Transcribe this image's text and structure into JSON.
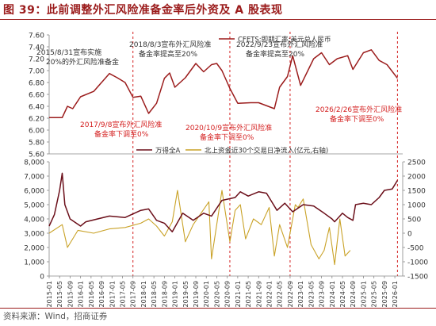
{
  "title": "图 39：此前调整外汇风险准备金率后外资及 A 股表现",
  "source": "资料来源：Wind，招商证券",
  "chart_data": [
    {
      "type": "line",
      "panel": "top",
      "series": [
        {
          "name": "CFETS:即期汇率:美元兑人民币",
          "color": "#9b1c1c",
          "x": [
            "2015-01",
            "2015-06",
            "2015-08",
            "2015-10",
            "2016-01",
            "2016-06",
            "2016-12",
            "2017-03",
            "2017-06",
            "2017-09",
            "2017-12",
            "2018-03",
            "2018-06",
            "2018-09",
            "2018-11",
            "2019-01",
            "2019-05",
            "2019-09",
            "2019-12",
            "2020-03",
            "2020-05",
            "2020-07",
            "2020-10",
            "2021-01",
            "2021-06",
            "2021-09",
            "2022-03",
            "2022-05",
            "2022-08",
            "2022-10",
            "2023-01",
            "2023-06",
            "2023-09",
            "2023-12",
            "2024-03",
            "2024-07",
            "2024-09",
            "2025-01",
            "2025-04",
            "2025-07",
            "2025-10",
            "2026-02"
          ],
          "values": [
            6.21,
            6.21,
            6.4,
            6.36,
            6.56,
            6.65,
            6.95,
            6.88,
            6.8,
            6.55,
            6.57,
            6.28,
            6.45,
            6.87,
            6.96,
            6.72,
            6.88,
            7.12,
            6.98,
            7.1,
            7.12,
            7.0,
            6.7,
            6.45,
            6.46,
            6.46,
            6.36,
            6.72,
            6.9,
            7.25,
            6.75,
            7.2,
            7.3,
            7.1,
            7.2,
            7.25,
            7.02,
            7.3,
            7.35,
            7.17,
            7.1,
            6.87
          ]
        }
      ],
      "ylim": [
        5.6,
        7.6
      ],
      "yticks": [
        "5.60",
        "5.80",
        "6.00",
        "6.20",
        "6.40",
        "6.60",
        "6.80",
        "7.00",
        "7.20",
        "7.40",
        "7.60"
      ],
      "legend": "top-right",
      "annotations": [
        {
          "text": [
            "2015/8/31宣布实施",
            "20%的外汇风险准备金"
          ],
          "color": "#333333"
        },
        {
          "text": [
            "2017/9/8宣布外汇风险准",
            "备金率下调至0%"
          ],
          "color": "#d42020"
        },
        {
          "text": [
            "2018/8/3宣布外汇风险准",
            "备金率提高至20%"
          ],
          "color": "#333333"
        },
        {
          "text": [
            "2020/10/9宣布外汇风险准",
            "备金率下调至0%"
          ],
          "color": "#d42020"
        },
        {
          "text": [
            "2022/9/23宣布外汇风险准",
            "备金率提高至20%"
          ],
          "color": "#333333"
        },
        {
          "text": [
            "2026/2/26宣布外汇风险准",
            "备金率下调至0%"
          ],
          "color": "#d42020"
        }
      ],
      "event_dates": [
        "2017-09",
        "2020-10",
        "2022-09",
        "2026-02"
      ]
    },
    {
      "type": "line",
      "panel": "bottom",
      "series": [
        {
          "name": "万得全A",
          "axis": "left",
          "color": "#6b0f1a",
          "x": [
            "2015-01",
            "2015-03",
            "2015-05",
            "2015-06",
            "2015-07",
            "2015-09",
            "2016-01",
            "2016-03",
            "2016-12",
            "2017-06",
            "2017-12",
            "2018-03",
            "2018-06",
            "2018-09",
            "2018-12",
            "2019-04",
            "2019-08",
            "2019-12",
            "2020-03",
            "2020-07",
            "2020-12",
            "2021-02",
            "2021-05",
            "2021-09",
            "2021-12",
            "2022-04",
            "2022-07",
            "2022-10",
            "2023-02",
            "2023-06",
            "2023-10",
            "2024-01",
            "2024-02",
            "2024-05",
            "2024-07",
            "2024-09",
            "2024-10",
            "2025-01",
            "2025-04",
            "2025-07",
            "2025-09",
            "2025-12",
            "2026-02"
          ],
          "values": [
            3500,
            4300,
            6000,
            7200,
            5000,
            4000,
            3500,
            3800,
            4200,
            4100,
            4600,
            4700,
            3900,
            3700,
            3100,
            4400,
            3900,
            4400,
            4200,
            5300,
            5500,
            5900,
            5600,
            5900,
            5800,
            4600,
            5100,
            4500,
            5000,
            4900,
            4400,
            4000,
            3800,
            4400,
            4100,
            3900,
            5000,
            5100,
            5000,
            5500,
            6000,
            6100,
            6700
          ]
        },
        {
          "name": "北上资金近30个交易日净流入(亿元,右轴)",
          "axis": "right",
          "color": "#c9a227",
          "x": [
            "2015-01",
            "2015-06",
            "2015-08",
            "2015-12",
            "2016-06",
            "2016-12",
            "2017-06",
            "2017-12",
            "2018-03",
            "2018-06",
            "2018-09",
            "2018-12",
            "2019-02",
            "2019-05",
            "2019-08",
            "2019-11",
            "2020-02",
            "2020-03",
            "2020-05",
            "2020-07",
            "2020-10",
            "2020-12",
            "2021-02",
            "2021-04",
            "2021-07",
            "2021-10",
            "2022-01",
            "2022-03",
            "2022-05",
            "2022-08",
            "2022-11",
            "2022-12",
            "2023-02",
            "2023-05",
            "2023-08",
            "2023-10",
            "2023-12",
            "2024-02",
            "2024-04",
            "2024-06",
            "2024-08"
          ],
          "values": [
            0,
            300,
            -500,
            100,
            0,
            150,
            200,
            350,
            500,
            250,
            -100,
            400,
            1500,
            -300,
            300,
            700,
            1100,
            -900,
            300,
            1500,
            -300,
            800,
            1000,
            -200,
            500,
            300,
            900,
            -800,
            300,
            -500,
            1000,
            900,
            1200,
            -400,
            -900,
            -600,
            200,
            -1100,
            500,
            -800,
            -600
          ]
        }
      ],
      "ylim_left": [
        0,
        8000
      ],
      "ylim_right": [
        -1500,
        2500
      ],
      "yticks_left": [
        "0",
        "1,000",
        "2,000",
        "3,000",
        "4,000",
        "5,000",
        "6,000",
        "7,000",
        "8,000"
      ],
      "yticks_right": [
        "-1500",
        "-1000",
        "-500",
        "0",
        "500",
        "1000",
        "1500",
        "2000",
        "2500"
      ],
      "legend": "top-center",
      "xticks": [
        "2015-01",
        "2015-05",
        "2015-09",
        "2016-01",
        "2016-05",
        "2016-09",
        "2017-01",
        "2017-05",
        "2017-09",
        "2018-01",
        "2018-05",
        "2018-09",
        "2019-01",
        "2019-05",
        "2019-09",
        "2020-01",
        "2020-05",
        "2020-09",
        "2021-01",
        "2021-05",
        "2021-09",
        "2022-01",
        "2022-05",
        "2022-09",
        "2023-01",
        "2023-05",
        "2023-09",
        "2024-01",
        "2024-05",
        "2024-09",
        "2025-01",
        "2025-05",
        "2025-09",
        "2026-01"
      ]
    }
  ]
}
